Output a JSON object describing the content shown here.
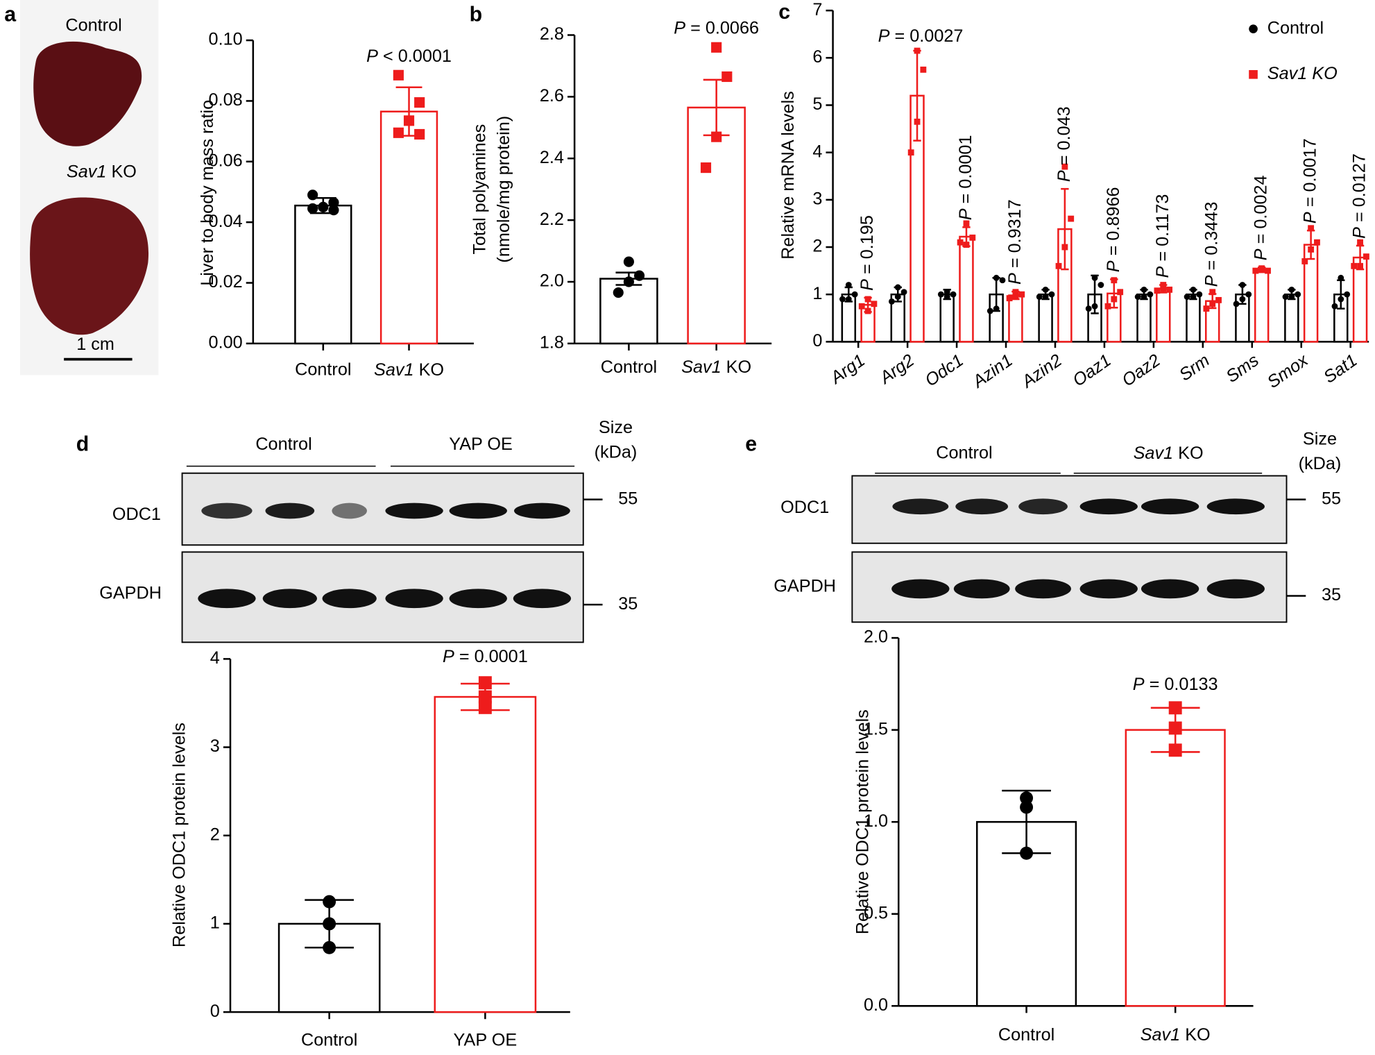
{
  "chart_data": [
    {
      "type": "bar",
      "panel": "a",
      "ylabel": [
        "Liver to body mass ratio"
      ],
      "categories": [
        "Control",
        "Sav1 KO"
      ],
      "values": [
        0.0455,
        0.0765
      ],
      "errors": [
        0.0025,
        0.008
      ],
      "points": [
        [
          0.049,
          0.0465,
          0.045,
          0.0445,
          0.044
        ],
        [
          0.0885,
          0.0795,
          0.0735,
          0.0695,
          0.069
        ]
      ],
      "colors": [
        "#000000",
        "#ee1c1c"
      ],
      "ylim": [
        0,
        0.1
      ],
      "yticks": [
        {
          "value": 0,
          "label": "0.00"
        },
        {
          "value": 0.02,
          "label": "0.02"
        },
        {
          "value": 0.04,
          "label": "0.04"
        },
        {
          "value": 0.06,
          "label": "0.06"
        },
        {
          "value": 0.08,
          "label": "0.08"
        },
        {
          "value": 0.1,
          "label": "0.10"
        }
      ],
      "annotation": "P < 0.0001"
    },
    {
      "type": "bar",
      "panel": "b",
      "ylabel": [
        "Total polyamines",
        "(nmole/mg protein)"
      ],
      "categories": [
        "Control",
        "Sav1 KO"
      ],
      "values": [
        2.01,
        2.565
      ],
      "errors": [
        0.02,
        0.09
      ],
      "points": [
        [
          2.065,
          2.02,
          2.0,
          1.965
        ],
        [
          2.76,
          2.665,
          2.47,
          2.37
        ]
      ],
      "colors": [
        "#000000",
        "#ee1c1c"
      ],
      "ylim": [
        1.8,
        2.8
      ],
      "yticks": [
        1.8,
        {
          "value": 2,
          "label": "2.0"
        },
        2.2,
        2.4,
        2.6,
        2.8
      ],
      "annotation": "P = 0.0066"
    },
    {
      "type": "grouped-bar",
      "panel": "c",
      "ylabel": [
        "Relative mRNA levels"
      ],
      "categories": [
        "Arg1",
        "Arg2",
        "Odc1",
        "Azin1",
        "Azin2",
        "Oaz1",
        "Oaz2",
        "Srm",
        "Sms",
        "Smox",
        "Sat1"
      ],
      "series": [
        {
          "name": "Control",
          "color": "#000000",
          "values": [
            1,
            1,
            1,
            1,
            1,
            1,
            1,
            1,
            1,
            1,
            1
          ],
          "errors": [
            0.15,
            0.15,
            0.1,
            0.35,
            0.1,
            0.4,
            0.1,
            0.1,
            0.2,
            0.1,
            0.3
          ],
          "points": [
            [
              1.2,
              1.0,
              0.9,
              0.9
            ],
            [
              1.15,
              1.05,
              0.95,
              0.85
            ],
            [
              1.05,
              1.0,
              0.95,
              1.0
            ],
            [
              1.35,
              1.3,
              0.7,
              0.65
            ],
            [
              1.1,
              1.0,
              0.95,
              0.95
            ],
            [
              1.35,
              1.2,
              0.75,
              0.7
            ],
            [
              1.1,
              1.0,
              0.95,
              0.95
            ],
            [
              1.1,
              1.0,
              0.95,
              0.95
            ],
            [
              1.2,
              1.0,
              0.9,
              0.8
            ],
            [
              1.1,
              1.0,
              0.95,
              0.95
            ],
            [
              1.35,
              1.0,
              0.9,
              0.75
            ]
          ]
        },
        {
          "name": "Sav1 KO",
          "color": "#ee1c1c",
          "values": [
            0.78,
            5.2,
            2.22,
            0.98,
            2.38,
            1.02,
            1.12,
            0.86,
            1.52,
            2.05,
            1.78
          ],
          "errors": [
            0.15,
            0.95,
            0.2,
            0.08,
            0.85,
            0.3,
            0.08,
            0.15,
            0.05,
            0.3,
            0.25
          ],
          "points": [
            [
              0.9,
              0.8,
              0.65,
              0.75
            ],
            [
              6.15,
              5.75,
              4.65,
              4.0
            ],
            [
              2.5,
              2.2,
              2.05,
              2.1
            ],
            [
              1.05,
              1.0,
              0.95,
              0.92
            ],
            [
              3.7,
              2.6,
              2.0,
              1.6
            ],
            [
              1.3,
              1.05,
              0.9,
              0.75
            ],
            [
              1.2,
              1.1,
              1.12,
              1.08
            ],
            [
              1.05,
              0.88,
              0.8,
              0.7
            ],
            [
              1.55,
              1.5,
              1.52,
              1.5
            ],
            [
              2.4,
              2.1,
              1.95,
              1.7
            ],
            [
              2.1,
              1.8,
              1.6,
              1.6
            ]
          ]
        }
      ],
      "ylim": [
        0,
        7
      ],
      "yticks": [
        0,
        1,
        2,
        3,
        4,
        5,
        6,
        7
      ],
      "annotations": [
        "P = 0.195",
        "P = 0.0027",
        "P = 0.0001",
        "P = 0.9317",
        "P = 0.043",
        "P = 0.8966",
        "P = 0.1173",
        "P = 0.3443",
        "P = 0.0024",
        "P = 0.0017",
        "P = 0.0127"
      ],
      "legend": "top-right"
    },
    {
      "type": "bar",
      "panel": "d",
      "ylabel": [
        "Relative ODC1 protein levels"
      ],
      "categories": [
        "Control",
        "YAP OE"
      ],
      "values": [
        1,
        3.57
      ],
      "errors": [
        0.27,
        0.15
      ],
      "points": [
        [
          1.25,
          1.0,
          0.73
        ],
        [
          3.73,
          3.57,
          3.45
        ]
      ],
      "colors": [
        "#000000",
        "#ee1c1c"
      ],
      "ylim": [
        0,
        4
      ],
      "yticks": [
        0,
        1,
        2,
        3,
        4
      ],
      "annotation": "P = 0.0001"
    },
    {
      "type": "bar",
      "panel": "e",
      "ylabel": [
        "Relative ODC1 protein levels"
      ],
      "categories": [
        "Control",
        "Sav1 KO"
      ],
      "values": [
        1,
        1.5
      ],
      "errors": [
        0.17,
        0.12
      ],
      "points": [
        [
          1.13,
          1.08,
          0.83
        ],
        [
          1.62,
          1.51,
          1.39
        ]
      ],
      "colors": [
        "#000000",
        "#ee1c1c"
      ],
      "ylim": [
        0,
        2
      ],
      "yticks": [
        {
          "value": 0,
          "label": "0.0"
        },
        0.5,
        {
          "value": 1,
          "label": "1.0"
        },
        1.5,
        {
          "value": 2,
          "label": "2.0"
        }
      ],
      "annotation": "P = 0.0133"
    }
  ],
  "photos": {
    "labels": [
      "Control",
      "Sav1 KO"
    ],
    "scale": "1 cm"
  },
  "blots": [
    {
      "lanes": [
        "Control",
        "YAP OE"
      ],
      "size": [
        "Size",
        "(kDa)"
      ],
      "rows": [
        "ODC1",
        "GAPDH"
      ],
      "markers": [
        "55",
        "35"
      ]
    },
    {
      "lanes": [
        "Control",
        "Sav1 KO"
      ],
      "size": [
        "Size",
        "(kDa)"
      ],
      "rows": [
        "ODC1",
        "GAPDH"
      ],
      "markers": [
        "55",
        "35"
      ]
    }
  ]
}
